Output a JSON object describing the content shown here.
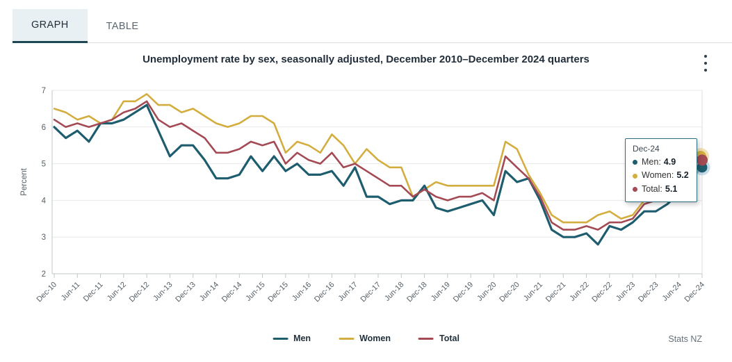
{
  "tabs": [
    {
      "label": "GRAPH",
      "active": true
    },
    {
      "label": "TABLE",
      "active": false
    }
  ],
  "header": {
    "title": "Unemployment rate by sex, seasonally adjusted, December 2010–December 2024 quarters",
    "menu_icon": "kebab-vertical-menu"
  },
  "y_axis_title": "Percent",
  "source": "Stats NZ",
  "tooltip": {
    "title": "Dec-24",
    "rows": [
      {
        "series": "Men",
        "label": "Men:",
        "value": "4.9"
      },
      {
        "series": "Women",
        "label": "Women:",
        "value": "5.2"
      },
      {
        "series": "Total",
        "label": "Total:",
        "value": "5.1"
      }
    ]
  },
  "ui_colors": {
    "accent_teal": "#1c4856",
    "active_tab_bg": "#e9f0f3",
    "tooltip_border": "#2b6d7e",
    "axis_text": "#555f66",
    "gridline": "#e9e9e9",
    "axis_line": "#c2c7ca"
  },
  "chart_data": {
    "type": "line",
    "title": "Unemployment rate by sex, seasonally adjusted, December 2010–December 2024 quarters",
    "xlabel": "",
    "ylabel": "Percent",
    "ylim": [
      2,
      7
    ],
    "yticks": [
      2,
      3,
      4,
      5,
      6,
      7
    ],
    "grid": "horizontal",
    "legend_position": "bottom",
    "x_tick_step": 2,
    "x": [
      "Dec-10",
      "Mar-11",
      "Jun-11",
      "Sep-11",
      "Dec-11",
      "Mar-12",
      "Jun-12",
      "Sep-12",
      "Dec-12",
      "Mar-13",
      "Jun-13",
      "Sep-13",
      "Dec-13",
      "Mar-14",
      "Jun-14",
      "Sep-14",
      "Dec-14",
      "Mar-15",
      "Jun-15",
      "Sep-15",
      "Dec-15",
      "Mar-16",
      "Jun-16",
      "Sep-16",
      "Dec-16",
      "Mar-17",
      "Jun-17",
      "Sep-17",
      "Dec-17",
      "Mar-18",
      "Jun-18",
      "Sep-18",
      "Dec-18",
      "Mar-19",
      "Jun-19",
      "Sep-19",
      "Dec-19",
      "Mar-20",
      "Jun-20",
      "Sep-20",
      "Dec-20",
      "Mar-21",
      "Jun-21",
      "Sep-21",
      "Dec-21",
      "Mar-22",
      "Jun-22",
      "Sep-22",
      "Dec-22",
      "Mar-23",
      "Jun-23",
      "Sep-23",
      "Dec-23",
      "Mar-24",
      "Jun-24",
      "Sep-24",
      "Dec-24"
    ],
    "series": [
      {
        "name": "Men",
        "color": "#1d5d6e",
        "line_width": 3.2,
        "values": [
          6.0,
          5.7,
          5.9,
          5.6,
          6.1,
          6.1,
          6.2,
          6.4,
          6.6,
          5.9,
          5.2,
          5.5,
          5.5,
          5.1,
          4.6,
          4.6,
          4.7,
          5.2,
          4.8,
          5.2,
          4.8,
          5.0,
          4.7,
          4.7,
          4.8,
          4.4,
          4.9,
          4.1,
          4.1,
          3.9,
          4.0,
          4.0,
          4.4,
          3.8,
          3.7,
          3.8,
          3.9,
          4.0,
          3.6,
          4.8,
          4.5,
          4.6,
          4.0,
          3.2,
          3.0,
          3.0,
          3.1,
          2.8,
          3.3,
          3.2,
          3.4,
          3.7,
          3.7,
          3.9,
          4.2,
          4.6,
          4.9
        ]
      },
      {
        "name": "Women",
        "color": "#d4ad3f",
        "line_width": 2.6,
        "values": [
          6.5,
          6.4,
          6.2,
          6.3,
          6.1,
          6.2,
          6.7,
          6.7,
          6.9,
          6.6,
          6.6,
          6.4,
          6.5,
          6.3,
          6.1,
          6.0,
          6.1,
          6.3,
          6.3,
          6.1,
          5.3,
          5.6,
          5.5,
          5.3,
          5.8,
          5.5,
          5.0,
          5.4,
          5.1,
          4.9,
          4.9,
          4.1,
          4.3,
          4.5,
          4.4,
          4.4,
          4.4,
          4.4,
          4.4,
          5.6,
          5.4,
          4.7,
          4.2,
          3.6,
          3.4,
          3.4,
          3.4,
          3.6,
          3.7,
          3.5,
          3.6,
          4.0,
          4.1,
          4.4,
          4.7,
          5.0,
          5.2
        ]
      },
      {
        "name": "Total",
        "color": "#a34a54",
        "line_width": 2.6,
        "values": [
          6.2,
          6.0,
          6.1,
          6.0,
          6.1,
          6.2,
          6.4,
          6.5,
          6.7,
          6.2,
          6.0,
          6.1,
          5.9,
          5.7,
          5.3,
          5.3,
          5.4,
          5.6,
          5.5,
          5.6,
          5.0,
          5.3,
          5.1,
          5.0,
          5.3,
          4.9,
          5.0,
          4.8,
          4.6,
          4.4,
          4.4,
          4.1,
          4.3,
          4.1,
          4.0,
          4.1,
          4.1,
          4.2,
          4.0,
          5.2,
          4.9,
          4.6,
          4.1,
          3.4,
          3.2,
          3.2,
          3.3,
          3.2,
          3.4,
          3.4,
          3.5,
          3.9,
          4.0,
          4.2,
          4.5,
          4.8,
          5.1
        ]
      }
    ],
    "highlight": {
      "x": "Dec-24",
      "points": [
        {
          "series": "Men",
          "value": 4.9
        },
        {
          "series": "Women",
          "value": 5.2
        },
        {
          "series": "Total",
          "value": 5.1
        }
      ]
    }
  }
}
